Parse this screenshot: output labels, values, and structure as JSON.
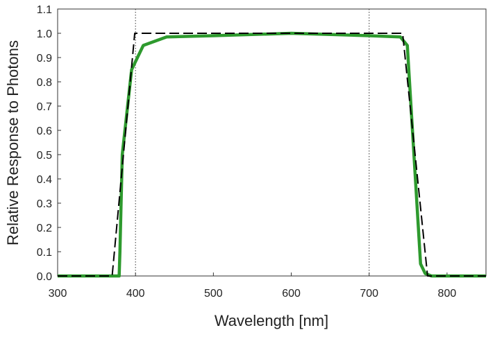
{
  "chart_data": {
    "type": "line",
    "xlabel": "Wavelength [nm]",
    "ylabel": "Relative Response to Photons",
    "xlim": [
      300,
      850
    ],
    "ylim": [
      0,
      1.1
    ],
    "xticks": [
      300,
      400,
      500,
      600,
      700,
      800
    ],
    "yticks": [
      {
        "value": 0,
        "label": "0.0"
      },
      0.1,
      0.2,
      0.3,
      0.4,
      0.5,
      0.6,
      0.7,
      0.8,
      0.9,
      {
        "value": 1,
        "label": "1.0"
      },
      1.1
    ],
    "vlines": [
      400,
      700
    ],
    "series": [
      {
        "color": "#000000",
        "style": "dashed",
        "x": [
          300,
          370,
          399,
          743,
          775,
          850
        ],
        "values": [
          0,
          0,
          1.0,
          1.0,
          0,
          0
        ]
      },
      {
        "color": "#2e9a2e",
        "style": "solid",
        "x": [
          300,
          379,
          380,
          383,
          395,
          410,
          440,
          500,
          600,
          700,
          740,
          749,
          766,
          772,
          780,
          850
        ],
        "values": [
          0,
          0,
          0.1,
          0.5,
          0.85,
          0.95,
          0.985,
          0.99,
          1.0,
          0.99,
          0.985,
          0.95,
          0.05,
          0.01,
          0,
          0
        ]
      }
    ]
  }
}
